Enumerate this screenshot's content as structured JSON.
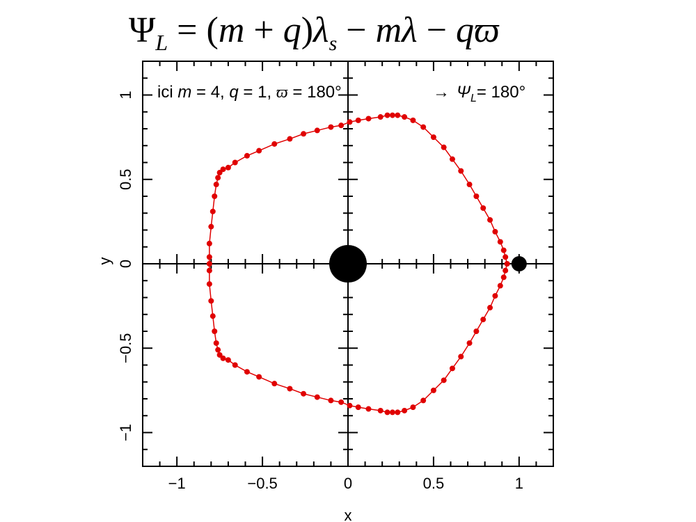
{
  "equation": {
    "lhs": "Ψ",
    "lhs_sub": "L",
    "rhs_part1": " = (",
    "m": "m",
    "plus": " + ",
    "q": "q",
    "rhs_part2": ")",
    "lambda_s": "λ",
    "lambda_sub": "s",
    "minus1": " − ",
    "m2": "m",
    "lambda": "λ",
    "minus2": " − ",
    "q2": "q",
    "varpi": "ϖ"
  },
  "annotation": {
    "prefix": "ici ",
    "m_sym": "m",
    "m_val": " = 4, ",
    "q_sym": "q",
    "q_val": " = 1, ",
    "varpi_sym": "ϖ",
    "varpi_val": " = 180°",
    "arrow": "→",
    "psi_sym": "Ψ",
    "psi_sub": "L",
    "psi_val": "= 180°"
  },
  "chart_data": {
    "type": "scatter",
    "title": "",
    "xlabel": "x",
    "ylabel": "y",
    "xlim": [
      -1.2,
      1.2
    ],
    "ylim": [
      -1.2,
      1.2
    ],
    "x_ticks": [
      -1,
      -0.5,
      0,
      0.5,
      1
    ],
    "y_ticks": [
      -1,
      -0.5,
      0,
      0.5,
      1
    ],
    "x_tick_labels": [
      "−1",
      "−0.5",
      "0",
      "0.5",
      "1"
    ],
    "y_tick_labels": [
      "−1",
      "−0.5",
      "0",
      "0.5",
      "1"
    ],
    "grid": false,
    "series_color": "#e00000",
    "central_body": {
      "x": 0,
      "y": 0,
      "color": "#000000"
    },
    "secondary_body": {
      "x": 1,
      "y": 0,
      "color": "#000000"
    },
    "series": [
      {
        "name": "",
        "points": [
          [
            0.93,
            0.0
          ],
          [
            0.92,
            0.04
          ],
          [
            0.91,
            0.08
          ],
          [
            0.89,
            0.13
          ],
          [
            0.86,
            0.19
          ],
          [
            0.83,
            0.26
          ],
          [
            0.79,
            0.33
          ],
          [
            0.75,
            0.4
          ],
          [
            0.71,
            0.47
          ],
          [
            0.66,
            0.55
          ],
          [
            0.61,
            0.62
          ],
          [
            0.56,
            0.69
          ],
          [
            0.5,
            0.75
          ],
          [
            0.44,
            0.81
          ],
          [
            0.38,
            0.85
          ],
          [
            0.33,
            0.87
          ],
          [
            0.29,
            0.88
          ],
          [
            0.26,
            0.88
          ],
          [
            0.23,
            0.88
          ],
          [
            0.19,
            0.87
          ],
          [
            0.12,
            0.86
          ],
          [
            0.06,
            0.85
          ],
          [
            0.01,
            0.84
          ],
          [
            -0.04,
            0.82
          ],
          [
            -0.1,
            0.81
          ],
          [
            -0.18,
            0.79
          ],
          [
            -0.26,
            0.77
          ],
          [
            -0.34,
            0.74
          ],
          [
            -0.43,
            0.71
          ],
          [
            -0.52,
            0.67
          ],
          [
            -0.59,
            0.64
          ],
          [
            -0.66,
            0.6
          ],
          [
            -0.7,
            0.57
          ],
          [
            -0.73,
            0.56
          ],
          [
            -0.75,
            0.54
          ],
          [
            -0.76,
            0.51
          ],
          [
            -0.77,
            0.47
          ],
          [
            -0.78,
            0.4
          ],
          [
            -0.79,
            0.31
          ],
          [
            -0.8,
            0.22
          ],
          [
            -0.81,
            0.12
          ],
          [
            -0.81,
            0.04
          ],
          [
            -0.81,
            0.0
          ],
          [
            -0.81,
            -0.04
          ],
          [
            -0.81,
            -0.12
          ],
          [
            -0.8,
            -0.22
          ],
          [
            -0.79,
            -0.31
          ],
          [
            -0.78,
            -0.4
          ],
          [
            -0.77,
            -0.47
          ],
          [
            -0.76,
            -0.51
          ],
          [
            -0.75,
            -0.54
          ],
          [
            -0.73,
            -0.56
          ],
          [
            -0.7,
            -0.57
          ],
          [
            -0.66,
            -0.6
          ],
          [
            -0.59,
            -0.64
          ],
          [
            -0.52,
            -0.67
          ],
          [
            -0.43,
            -0.71
          ],
          [
            -0.34,
            -0.74
          ],
          [
            -0.26,
            -0.77
          ],
          [
            -0.18,
            -0.79
          ],
          [
            -0.1,
            -0.81
          ],
          [
            -0.04,
            -0.82
          ],
          [
            0.01,
            -0.84
          ],
          [
            0.06,
            -0.85
          ],
          [
            0.12,
            -0.86
          ],
          [
            0.19,
            -0.87
          ],
          [
            0.23,
            -0.88
          ],
          [
            0.26,
            -0.88
          ],
          [
            0.29,
            -0.88
          ],
          [
            0.33,
            -0.87
          ],
          [
            0.38,
            -0.85
          ],
          [
            0.44,
            -0.81
          ],
          [
            0.5,
            -0.75
          ],
          [
            0.56,
            -0.69
          ],
          [
            0.61,
            -0.62
          ],
          [
            0.66,
            -0.55
          ],
          [
            0.71,
            -0.47
          ],
          [
            0.75,
            -0.4
          ],
          [
            0.79,
            -0.33
          ],
          [
            0.83,
            -0.26
          ],
          [
            0.86,
            -0.19
          ],
          [
            0.89,
            -0.13
          ],
          [
            0.91,
            -0.08
          ],
          [
            0.92,
            -0.04
          ]
        ]
      }
    ]
  }
}
